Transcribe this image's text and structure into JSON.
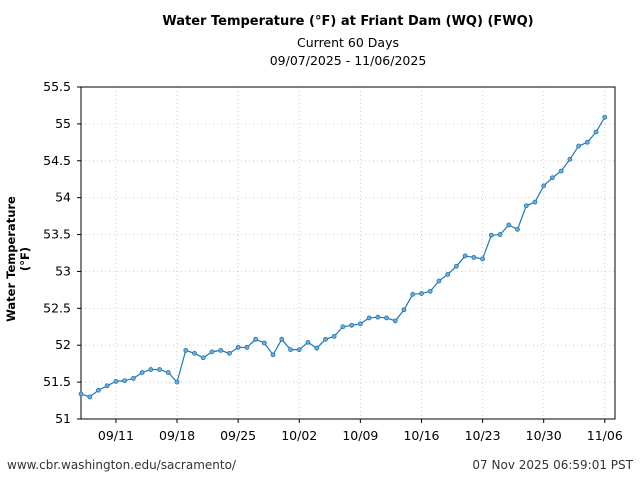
{
  "chart_data": {
    "type": "line",
    "title": "Water Temperature (°F) at Friant Dam (WQ) (FWQ)",
    "subtitle": [
      "Current 60 Days",
      "09/07/2025 - 11/06/2025"
    ],
    "xlabel": "",
    "ylabel": "Water Temperature (°F)",
    "ylim": [
      51,
      55.5
    ],
    "yticks": [
      "51",
      "51.5",
      "52",
      "52.5",
      "53",
      "53.5",
      "54",
      "54.5",
      "55",
      "55.5"
    ],
    "xticks": [
      "09/11",
      "09/18",
      "09/25",
      "10/02",
      "10/09",
      "10/16",
      "10/23",
      "10/30",
      "11/06"
    ],
    "xrange": [
      "09/07/2025",
      "11/06/2025"
    ],
    "grid": true,
    "color": "#1f77b4",
    "series": [
      {
        "values": [
          51.34,
          51.3,
          51.39,
          51.45,
          51.51,
          51.52,
          51.55,
          51.63,
          51.67,
          51.67,
          51.63,
          51.5,
          51.93,
          51.89,
          51.83,
          51.91,
          51.93,
          51.89,
          51.97,
          51.97,
          52.08,
          52.03,
          51.87,
          52.08,
          51.94,
          51.94,
          52.04,
          51.96,
          52.08,
          52.12,
          52.25,
          52.27,
          52.29,
          52.37,
          52.38,
          52.37,
          52.33,
          52.48,
          52.69,
          52.7,
          52.73,
          52.87,
          52.96,
          53.07,
          53.21,
          53.19,
          53.17,
          53.49,
          53.5,
          53.63,
          53.57,
          53.89,
          53.94,
          54.16,
          54.27,
          54.36,
          54.52,
          54.7,
          54.75,
          54.89,
          55.09
        ]
      }
    ]
  },
  "footer": {
    "source": "www.cbr.washington.edu/sacramento/",
    "timestamp": "07 Nov 2025 06:59:01 PST"
  }
}
